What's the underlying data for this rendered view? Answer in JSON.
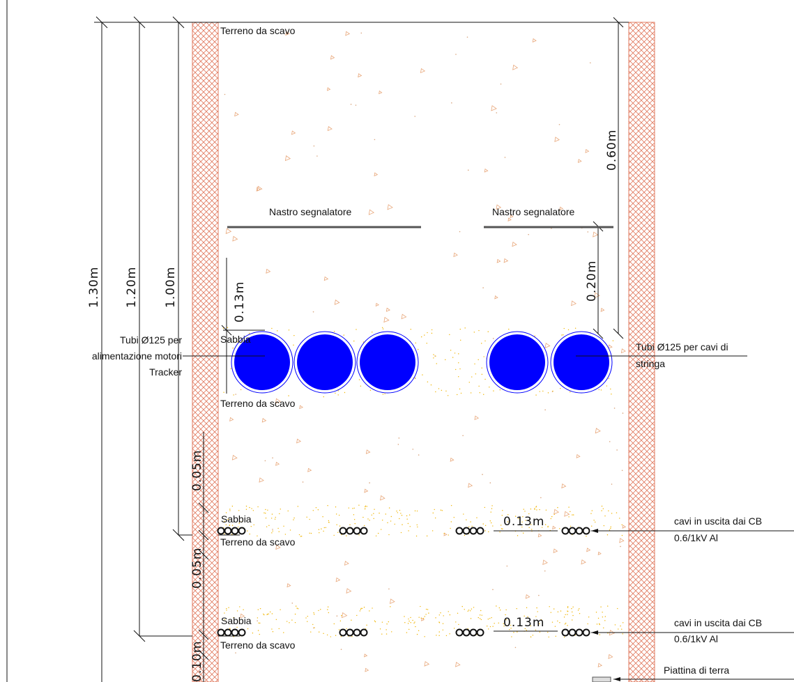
{
  "colors": {
    "background": "#ffffff",
    "wall_hatch": "#e07a5f",
    "fill_marks": "#e8a77a",
    "sand_dots": "#f0b400",
    "pipe_fill": "#0000ff",
    "line": "#111111"
  },
  "dimensions": {
    "total_1": "1.30m",
    "total_2": "1.20m",
    "total_3": "1.00m",
    "pipe_spacing": "0.13m",
    "top_cover": "0.60m",
    "tape_to_pipe": "0.20m",
    "layer_1": "0.05m",
    "layer_2": "0.05m",
    "layer_3": "0.10m",
    "cable_spacing_1": "0.13m",
    "cable_spacing_2": "0.13m"
  },
  "labels": {
    "top_fill": "Terreno da scavo",
    "tape_left": "Nastro segnalatore",
    "tape_right": "Nastro segnalatore",
    "sand_pipes": "Sabbia",
    "fill_below_pipes": "Terreno da scavo",
    "pipes_left": [
      "Tubi Ø125 per",
      "alimentazione motori",
      "Tracker"
    ],
    "pipes_right": [
      "Tubi Ø125 per cavi di",
      "stringa"
    ],
    "sand_cables_1": "Sabbia",
    "fill_cables_1": "Terreno da scavo",
    "cables_1": [
      "cavi in uscita dai CB",
      "0.6/1kV Al"
    ],
    "sand_cables_2": "Sabbia",
    "fill_cables_2": "Terreno da scavo",
    "cables_2": [
      "cavi in uscita dai CB",
      "0.6/1kV Al"
    ],
    "earth_strip": "Piattina di terra"
  }
}
